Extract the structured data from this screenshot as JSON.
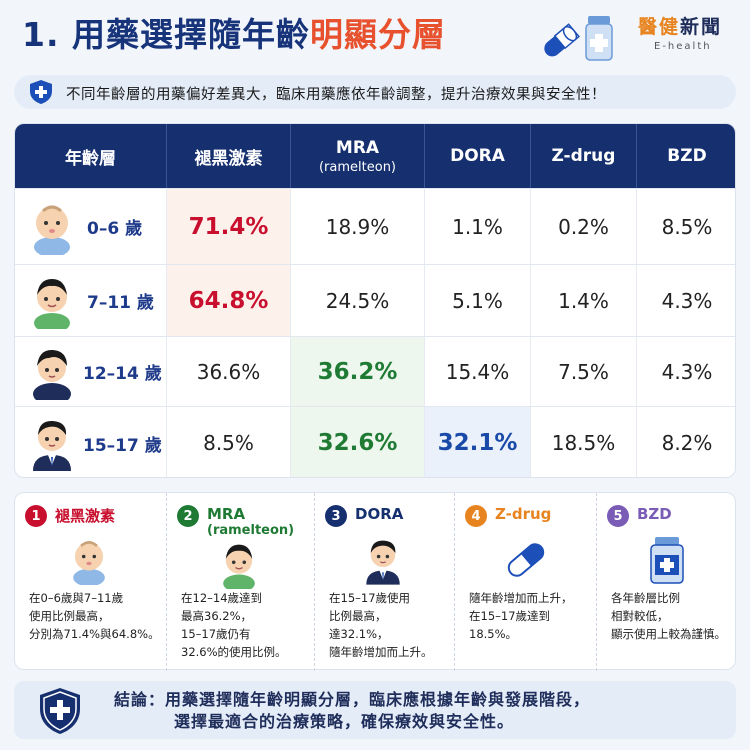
{
  "header": {
    "title_main": "1. 用藥選擇隨年齡",
    "title_highlight": "明顯分層",
    "brand_cn_a": "醫健",
    "brand_cn_b": "新聞",
    "brand_en": "E-health"
  },
  "subtitle": {
    "text": "不同年齡層的用藥偏好差異大，臨床用藥應依年齡調整，提升治療效果與安全性！"
  },
  "table": {
    "headers": [
      {
        "label": "年齡層",
        "sub": ""
      },
      {
        "label": "褪黑激素",
        "sub": ""
      },
      {
        "label": "MRA",
        "sub": "(ramelteon)"
      },
      {
        "label": "DORA",
        "sub": ""
      },
      {
        "label": "Z-drug",
        "sub": ""
      },
      {
        "label": "BZD",
        "sub": ""
      }
    ],
    "rows": [
      {
        "age": "0–6 歲",
        "values": [
          "71.4%",
          "18.9%",
          "1.1%",
          "0.2%",
          "8.5%"
        ]
      },
      {
        "age": "7–11 歲",
        "values": [
          "64.8%",
          "24.5%",
          "5.1%",
          "1.4%",
          "4.3%"
        ]
      },
      {
        "age": "12–14 歲",
        "values": [
          "36.6%",
          "36.2%",
          "15.4%",
          "7.5%",
          "4.3%"
        ]
      },
      {
        "age": "15–17 歲",
        "values": [
          "8.5%",
          "32.6%",
          "32.1%",
          "18.5%",
          "8.2%"
        ]
      }
    ]
  },
  "cards": [
    {
      "num": "1",
      "title": "褪黑激素",
      "sub": "",
      "color": "#c8102e",
      "desc": [
        "在0–6歲與7–11歲",
        "使用比例最高，",
        "分別為71.4%與64.8%。"
      ]
    },
    {
      "num": "2",
      "title": "MRA",
      "sub": "(ramelteon)",
      "color": "#1f7a34",
      "desc": [
        "在12–14歲達到",
        "最高36.2%，",
        "15–17歲仍有",
        "32.6%的使用比例。"
      ]
    },
    {
      "num": "3",
      "title": "DORA",
      "sub": "",
      "color": "#16306f",
      "desc": [
        "在15–17歲使用",
        "比例最高，",
        "達32.1%，",
        "隨年齡增加而上升。"
      ]
    },
    {
      "num": "4",
      "title": "Z-drug",
      "sub": "",
      "color": "#e8841f",
      "desc": [
        "隨年齡增加而上升，",
        "在15–17歲達到",
        "18.5%。"
      ]
    },
    {
      "num": "5",
      "title": "BZD",
      "sub": "",
      "color": "#7a5bb5",
      "desc": [
        "各年齡層比例",
        "相對較低，",
        "顯示使用上較為謹慎。"
      ]
    }
  ],
  "conclusion": {
    "line1": "結論：用藥選擇隨年齡明顯分層，臨床應根據年齡與發展階段，",
    "line2": "選擇最適合的治療策略，確保療效與安全性。"
  }
}
